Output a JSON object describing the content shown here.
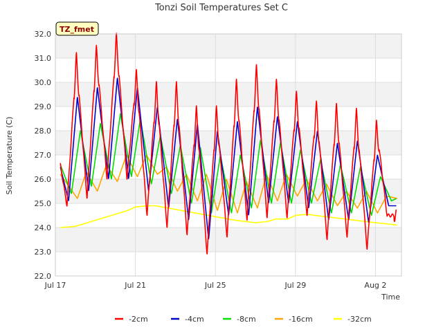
{
  "chart_data": {
    "type": "line",
    "title": "Tonzi Soil Temperatures Set C",
    "xlabel": "Time",
    "ylabel": "Soil Temperature (C)",
    "badge": "TZ_fmet",
    "xlim_days": [
      0,
      17.3
    ],
    "ylim": [
      22.0,
      32.0
    ],
    "x_ticks": [
      {
        "day": 0,
        "label": "Jul 17"
      },
      {
        "day": 4,
        "label": "Jul 21"
      },
      {
        "day": 8,
        "label": "Jul 25"
      },
      {
        "day": 12,
        "label": "Jul 29"
      },
      {
        "day": 16,
        "label": "Aug 2"
      }
    ],
    "y_ticks": [
      "22.0",
      "23.0",
      "24.0",
      "25.0",
      "26.0",
      "27.0",
      "28.0",
      "29.0",
      "30.0",
      "31.0",
      "32.0"
    ],
    "grid": true,
    "legend_position": "bottom",
    "series": [
      {
        "name": "-2cm",
        "color": "#ff0000",
        "phase": 0.58,
        "days": [
          0.25,
          0.58,
          1.05,
          1.58,
          2.05,
          2.58,
          3.05,
          3.58,
          4.05,
          4.58,
          5.05,
          5.58,
          6.05,
          6.58,
          7.05,
          7.58,
          8.05,
          8.58,
          9.05,
          9.58,
          10.05,
          10.58,
          11.05,
          11.58,
          12.05,
          12.58,
          13.05,
          13.58,
          14.05,
          14.58,
          15.05,
          15.58,
          16.05,
          16.58,
          17.05
        ],
        "values": [
          26.6,
          24.9,
          31.0,
          25.2,
          31.3,
          26.0,
          31.8,
          26.0,
          30.3,
          24.5,
          29.8,
          24.0,
          29.8,
          23.7,
          28.8,
          22.9,
          28.8,
          23.6,
          29.9,
          24.3,
          30.5,
          24.4,
          29.9,
          24.4,
          29.4,
          24.5,
          29.0,
          23.5,
          28.9,
          23.6,
          28.7,
          23.1,
          28.2,
          24.5,
          24.5
        ]
      },
      {
        "name": "-4cm",
        "color": "#0000cc",
        "phase": 0.66,
        "days": [
          0.25,
          0.66,
          1.1,
          1.66,
          2.1,
          2.66,
          3.1,
          3.66,
          4.1,
          4.66,
          5.1,
          5.66,
          6.1,
          6.66,
          7.1,
          7.66,
          8.1,
          8.66,
          9.1,
          9.66,
          10.1,
          10.66,
          11.1,
          11.66,
          12.1,
          12.66,
          13.1,
          13.66,
          14.1,
          14.66,
          15.1,
          15.66,
          16.1,
          16.66,
          17.05
        ],
        "values": [
          26.5,
          25.1,
          29.4,
          25.5,
          29.8,
          26.0,
          30.2,
          26.0,
          29.8,
          25.5,
          29.0,
          24.8,
          28.5,
          24.3,
          28.3,
          23.5,
          28.0,
          24.5,
          28.4,
          24.5,
          29.0,
          25.0,
          28.6,
          25.0,
          28.4,
          24.8,
          28.0,
          24.3,
          27.5,
          24.3,
          27.6,
          24.2,
          27.0,
          24.9,
          24.9
        ]
      },
      {
        "name": "-8cm",
        "color": "#00dd00",
        "phase": 0.8,
        "days": [
          0.25,
          0.8,
          1.25,
          1.8,
          2.25,
          2.8,
          3.25,
          3.8,
          4.25,
          4.8,
          5.25,
          5.8,
          6.25,
          6.8,
          7.25,
          7.8,
          8.25,
          8.8,
          9.25,
          9.8,
          10.25,
          10.8,
          11.25,
          11.8,
          12.25,
          12.8,
          13.25,
          13.8,
          14.25,
          14.8,
          15.25,
          15.8,
          16.25,
          16.8,
          17.05
        ],
        "values": [
          26.6,
          25.4,
          28.0,
          25.7,
          28.3,
          26.0,
          28.7,
          26.1,
          28.5,
          25.8,
          27.8,
          25.4,
          27.4,
          25.0,
          27.3,
          24.6,
          27.0,
          24.6,
          27.0,
          24.8,
          27.6,
          25.0,
          27.5,
          25.0,
          27.2,
          25.0,
          26.8,
          24.6,
          26.6,
          24.6,
          26.5,
          24.5,
          26.1,
          25.1,
          25.2
        ]
      },
      {
        "name": "-16cm",
        "color": "#ffa500",
        "phase": 1.1,
        "days": [
          0.25,
          1.1,
          1.55,
          2.1,
          2.55,
          3.1,
          3.55,
          4.1,
          4.55,
          5.1,
          5.55,
          6.1,
          6.55,
          7.1,
          7.55,
          8.1,
          8.55,
          9.1,
          9.55,
          10.1,
          10.55,
          11.1,
          11.55,
          12.1,
          12.55,
          13.1,
          13.55,
          14.1,
          14.55,
          15.1,
          15.55,
          16.1,
          16.55,
          17.1
        ],
        "values": [
          26.2,
          25.2,
          26.3,
          25.5,
          26.6,
          25.9,
          27.0,
          26.1,
          27.0,
          26.2,
          26.5,
          25.5,
          26.2,
          25.1,
          26.2,
          24.7,
          26.0,
          24.6,
          25.9,
          24.8,
          26.2,
          25.1,
          26.2,
          25.3,
          26.0,
          25.1,
          25.8,
          24.9,
          25.5,
          24.8,
          25.5,
          24.6,
          25.3,
          25.2
        ]
      },
      {
        "name": "-32cm",
        "color": "#ffff00",
        "phase": 0.0,
        "days": [
          0.25,
          1.0,
          2.0,
          3.0,
          3.6,
          4.0,
          4.6,
          5.0,
          6.0,
          7.0,
          8.0,
          9.0,
          10.0,
          10.6,
          11.0,
          11.6,
          12.0,
          12.6,
          13.0,
          14.0,
          15.0,
          16.0,
          16.6,
          17.1
        ],
        "values": [
          24.0,
          24.05,
          24.3,
          24.55,
          24.7,
          24.85,
          24.9,
          24.9,
          24.75,
          24.6,
          24.45,
          24.3,
          24.2,
          24.25,
          24.35,
          24.35,
          24.5,
          24.55,
          24.5,
          24.4,
          24.3,
          24.2,
          24.15,
          24.1
        ]
      }
    ]
  }
}
